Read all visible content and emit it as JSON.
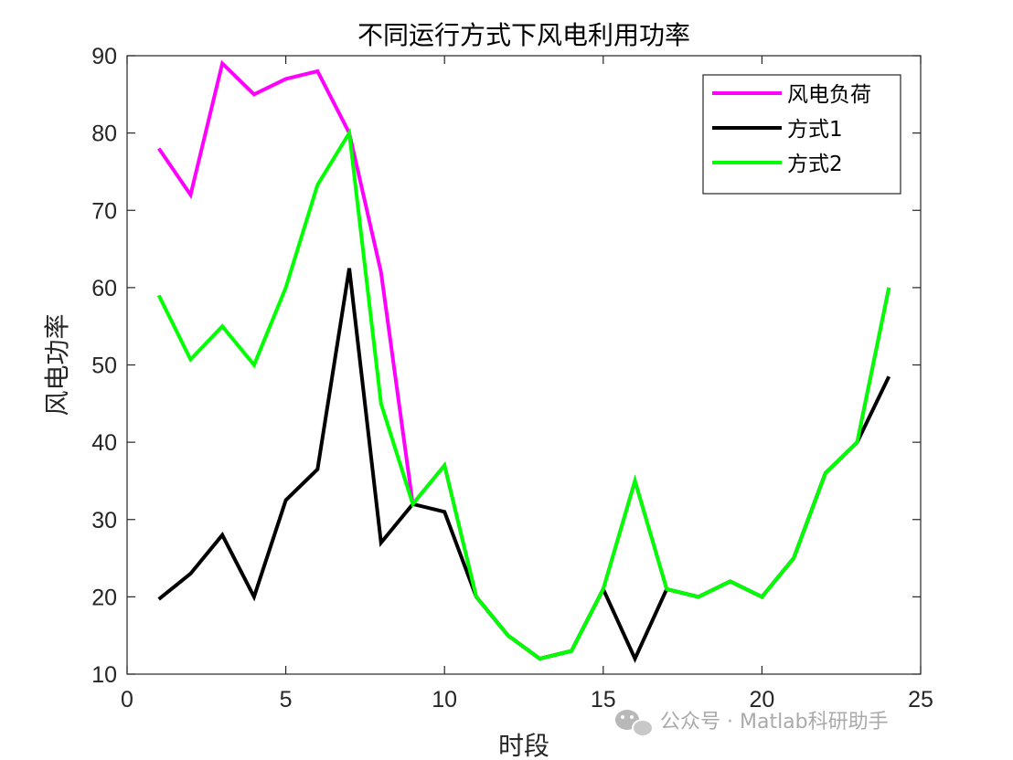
{
  "chart_data": {
    "type": "line",
    "title": "不同运行方式下风电利用功率",
    "xlabel": "时段",
    "ylabel": "风电功率",
    "xlim": [
      0,
      25
    ],
    "ylim": [
      10,
      90
    ],
    "xticks": [
      0,
      5,
      10,
      15,
      20,
      25
    ],
    "yticks": [
      10,
      20,
      30,
      40,
      50,
      60,
      70,
      80,
      90
    ],
    "grid": false,
    "legend_position": "top-right",
    "x": [
      1,
      2,
      3,
      4,
      5,
      6,
      7,
      8,
      9,
      10,
      11,
      12,
      13,
      14,
      15,
      16,
      17,
      18,
      19,
      20,
      21,
      22,
      23,
      24
    ],
    "series": [
      {
        "name": "风电负荷",
        "color": "#ff00ff",
        "values": [
          78,
          72,
          89,
          85,
          87,
          88,
          80,
          62,
          32,
          37,
          20,
          15,
          12,
          13,
          21,
          35,
          21,
          20,
          22,
          20,
          25,
          36,
          40,
          60
        ]
      },
      {
        "name": "方式1",
        "color": "#000000",
        "values": [
          19.7,
          23,
          28,
          20,
          32.5,
          36.5,
          62.5,
          27,
          32,
          31,
          20,
          15,
          12,
          13,
          21,
          12,
          21,
          20,
          22,
          20,
          25,
          36,
          40,
          48.5
        ]
      },
      {
        "name": "方式2",
        "color": "#00ff00",
        "values": [
          59,
          50.7,
          55,
          50,
          60,
          73.3,
          80,
          45,
          32,
          37,
          20,
          15,
          12,
          13,
          21,
          35,
          21,
          20,
          22,
          20,
          25,
          36,
          40,
          60
        ]
      }
    ]
  },
  "watermark": {
    "text": "公众号 · Matlab科研助手",
    "icon": "wechat-icon"
  }
}
